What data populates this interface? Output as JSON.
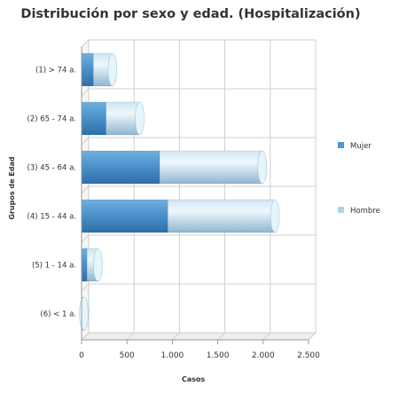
{
  "chart_data": {
    "type": "bar",
    "orientation": "horizontal",
    "stacked": true,
    "title": "Distribución por sexo y edad. (Hospitalización)",
    "xlabel": "Casos",
    "ylabel": "Grupos de Edad",
    "categories": [
      "(1) > 74 a.",
      "(2) 65 - 74 a.",
      "(3) 45 - 64 a.",
      "(4) 15 - 44 a.",
      "(5) 1 - 14 a.",
      "(6) < 1 a."
    ],
    "series": [
      {
        "name": "Mujer",
        "values": [
          130,
          270,
          860,
          950,
          60,
          10
        ],
        "color": "#4f97d1"
      },
      {
        "name": "Hombre",
        "values": [
          210,
          370,
          1130,
          1180,
          120,
          15
        ],
        "color": "#a9d3ef"
      }
    ],
    "xlim": [
      0,
      2500
    ],
    "xticks": [
      0,
      500,
      1000,
      1500,
      2000,
      2500
    ],
    "xtick_labels": [
      "0",
      "500",
      "1.000",
      "1.500",
      "2.000",
      "2.500"
    ],
    "grid": true,
    "legend_position": "right"
  }
}
